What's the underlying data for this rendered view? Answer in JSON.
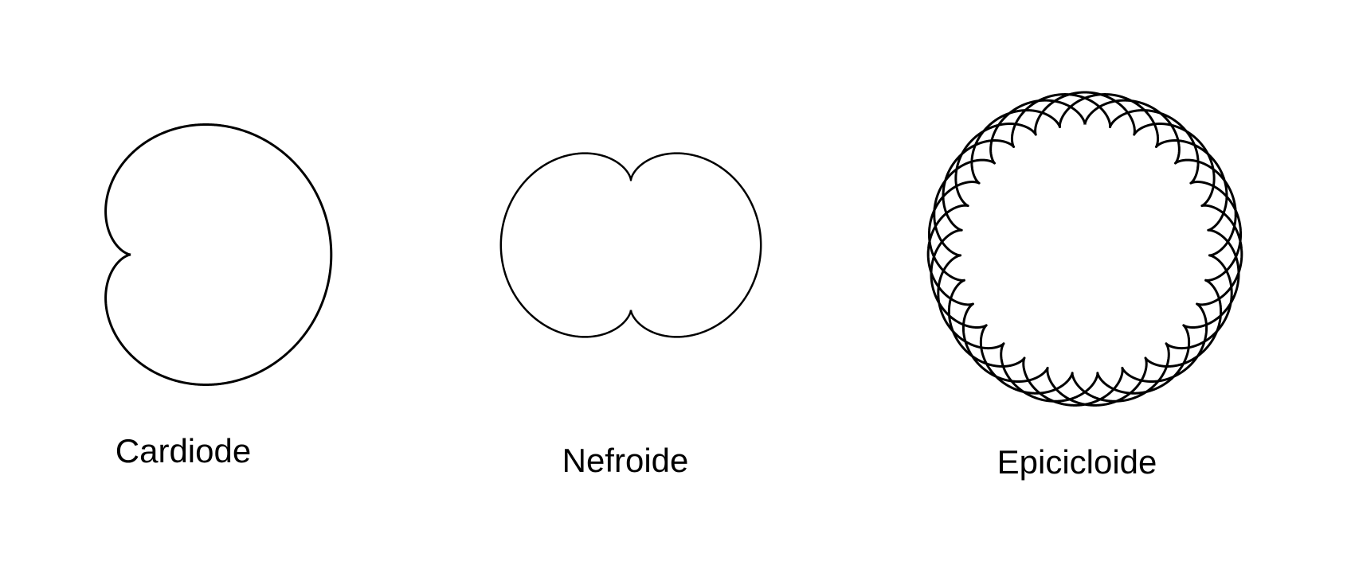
{
  "figures": [
    {
      "id": "cardioide",
      "label": "Cardiode",
      "curve": "epicycloid",
      "cusps": 1
    },
    {
      "id": "nefroide",
      "label": "Nefroide",
      "curve": "epicycloid",
      "cusps": 2
    },
    {
      "id": "epicicloide",
      "label": "Epicicloide",
      "curve": "epicycloid",
      "cusps": 31,
      "turns": 4
    }
  ],
  "colors": {
    "background": "#ffffff",
    "stroke": "#000000"
  }
}
